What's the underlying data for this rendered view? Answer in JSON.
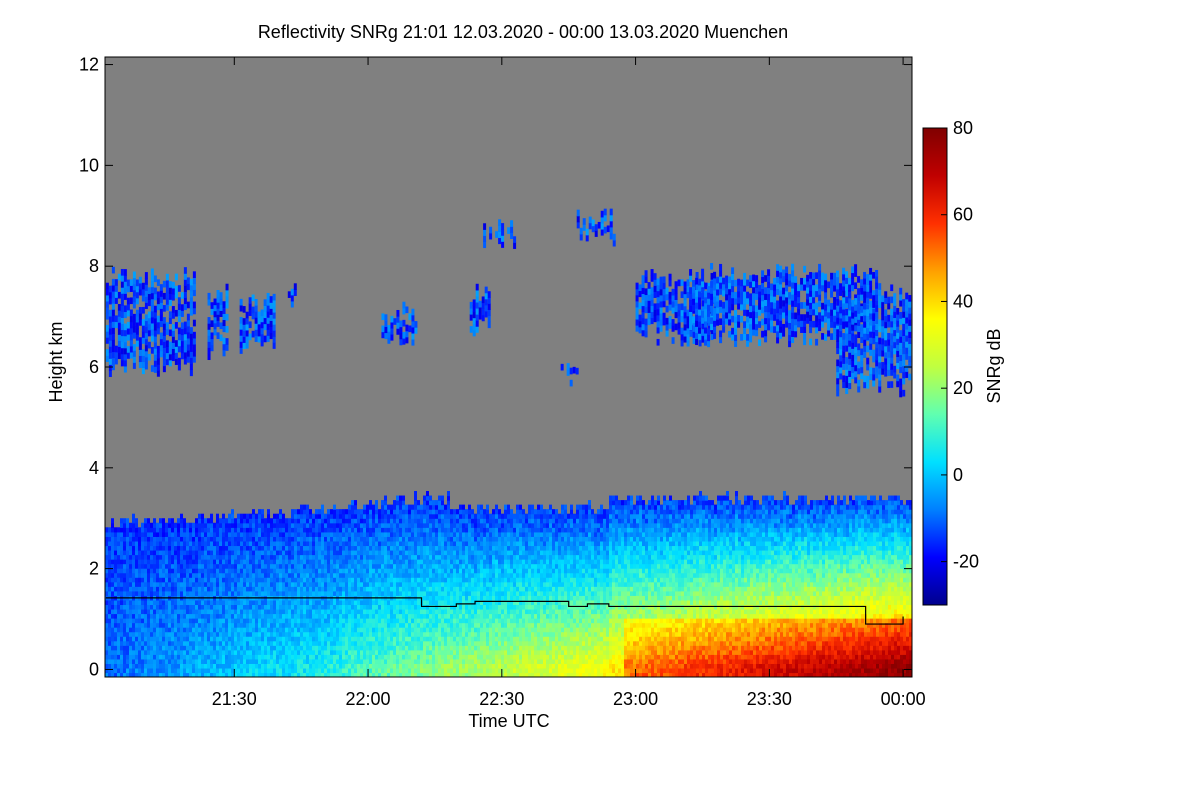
{
  "chart_data": {
    "type": "heatmap",
    "title": "Reflectivity SNRg   21:01 12.03.2020 - 00:00 13.03.2020 Muenchen",
    "xlabel": "Time UTC",
    "ylabel": "Height km",
    "colorbar_label": "SNRg dB",
    "xlim_hours": [
      21.0167,
      24.0333
    ],
    "ylim": [
      -0.15,
      12.15
    ],
    "x_ticks": [
      {
        "value": 21.5,
        "label": "21:30"
      },
      {
        "value": 22.0,
        "label": "22:00"
      },
      {
        "value": 22.5,
        "label": "22:30"
      },
      {
        "value": 23.0,
        "label": "23:00"
      },
      {
        "value": 23.5,
        "label": "23:30"
      },
      {
        "value": 24.0,
        "label": "00:00"
      }
    ],
    "y_ticks": [
      {
        "value": 0,
        "label": "0"
      },
      {
        "value": 2,
        "label": "2"
      },
      {
        "value": 4,
        "label": "4"
      },
      {
        "value": 6,
        "label": "6"
      },
      {
        "value": 8,
        "label": "8"
      },
      {
        "value": 10,
        "label": "10"
      },
      {
        "value": 12,
        "label": "12"
      }
    ],
    "colorbar_range": [
      -30,
      80
    ],
    "colorbar_ticks": [
      {
        "value": -20,
        "label": "-20"
      },
      {
        "value": 0,
        "label": "0"
      },
      {
        "value": 20,
        "label": "20"
      },
      {
        "value": 40,
        "label": "40"
      },
      {
        "value": 60,
        "label": "60"
      },
      {
        "value": 80,
        "label": "80"
      }
    ],
    "colors": {
      "no_data": "#808080",
      "colormap": [
        "#00008c",
        "#0000ff",
        "#0080ff",
        "#00e0ff",
        "#60ffb0",
        "#c0ff40",
        "#ffff00",
        "#ffa000",
        "#ff3000",
        "#c00000",
        "#800000"
      ]
    },
    "boundary_layer_top_km": {
      "times": [
        21.02,
        22.17,
        22.2,
        22.33,
        22.4,
        22.55,
        22.75,
        22.82,
        22.9,
        23.85,
        23.86,
        24.0
      ],
      "heights": [
        1.42,
        1.42,
        1.25,
        1.3,
        1.35,
        1.35,
        1.25,
        1.3,
        1.25,
        1.25,
        0.9,
        1.05
      ]
    }
  }
}
